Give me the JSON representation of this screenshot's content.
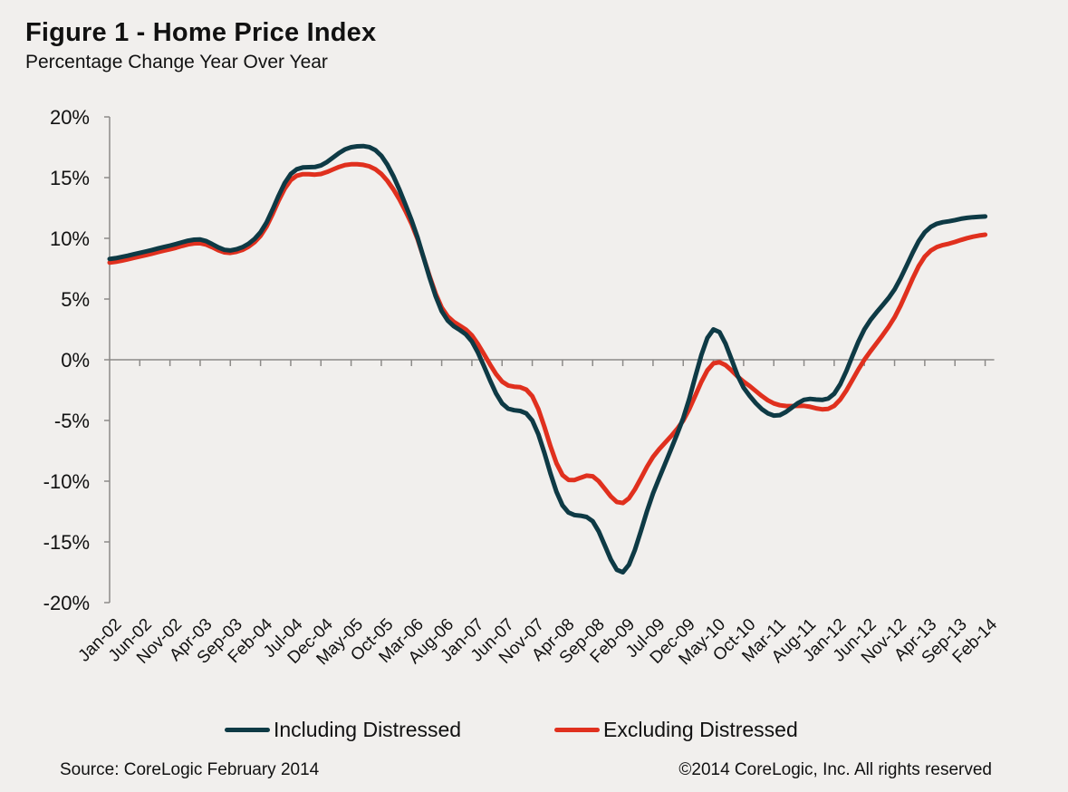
{
  "chart_data": {
    "type": "line",
    "title": "Figure 1 - Home Price Index",
    "subtitle": "Percentage Change Year Over Year",
    "xlabel": "",
    "ylabel": "",
    "ylim": [
      -20,
      20
    ],
    "yticks": [
      20,
      15,
      10,
      5,
      0,
      -5,
      -10,
      -15,
      -20
    ],
    "ytick_labels": [
      "20%",
      "15%",
      "10%",
      "5%",
      "0%",
      "-5%",
      "-10%",
      "-15%",
      "-20%"
    ],
    "x_start": "Jan-02",
    "x_end": "Feb-14",
    "x_frequency": "monthly",
    "xtick_labels": [
      "Jan-02",
      "Jun-02",
      "Nov-02",
      "Apr-03",
      "Sep-03",
      "Feb-04",
      "Jul-04",
      "Dec-04",
      "May-05",
      "Oct-05",
      "Mar-06",
      "Aug-06",
      "Jan-07",
      "Jun-07",
      "Nov-07",
      "Apr-08",
      "Sep-08",
      "Feb-09",
      "Jul-09",
      "Dec-09",
      "May-10",
      "Oct-10",
      "Mar-11",
      "Aug-11",
      "Jan-12",
      "Jun-12",
      "Nov-12",
      "Apr-13",
      "Sep-13",
      "Feb-14"
    ],
    "xtick_interval_months": 5,
    "grid": false,
    "legend_position": "bottom-center",
    "series": [
      {
        "name": "Including Distressed",
        "color": "#0e3a45",
        "anchor_values": [
          8.3,
          8.8,
          9.4,
          9.9,
          9.0,
          10.5,
          15.3,
          16.0,
          17.5,
          16.8,
          11.5,
          4.0,
          1.5,
          -3.6,
          -5.0,
          -12.0,
          -13.3,
          -17.5,
          -11.0,
          -4.8,
          2.5,
          -2.3,
          -4.6,
          -3.3,
          -2.8,
          2.5,
          5.8,
          10.5,
          11.5,
          11.8
        ]
      },
      {
        "name": "Excluding Distressed",
        "color": "#e0301e",
        "anchor_values": [
          8.0,
          8.5,
          9.1,
          9.6,
          8.8,
          10.2,
          14.8,
          15.3,
          16.1,
          15.3,
          11.2,
          4.3,
          2.0,
          -1.8,
          -3.0,
          -9.5,
          -9.6,
          -11.8,
          -8.0,
          -5.0,
          -0.3,
          -1.8,
          -3.6,
          -3.8,
          -3.8,
          0.0,
          3.5,
          8.5,
          9.7,
          10.3
        ]
      }
    ]
  },
  "legend": {
    "items": [
      {
        "label": "Including Distressed",
        "color": "#0e3a45"
      },
      {
        "label": "Excluding Distressed",
        "color": "#e0301e"
      }
    ]
  },
  "footer": {
    "source": "Source: CoreLogic  February  2014",
    "copyright": "©2014 CoreLogic, Inc. All rights reserved"
  }
}
